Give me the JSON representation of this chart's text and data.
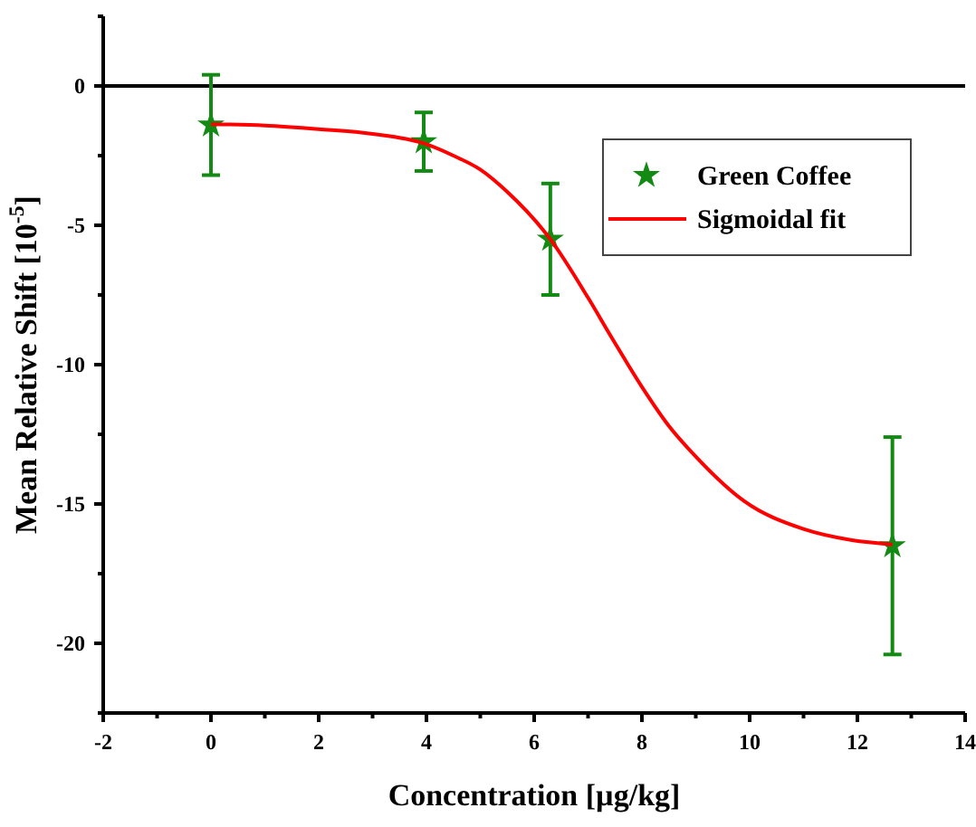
{
  "chart_data": {
    "type": "scatter",
    "xlabel": "Concentration [µg/kg]",
    "ylabel": "Mean Relative Shift [10$^{-5}$]",
    "xlim": [
      -2,
      14
    ],
    "xticks": [
      -2,
      {
        "value": -1,
        "label": null
      },
      0,
      {
        "value": 1,
        "label": null
      },
      2,
      {
        "value": 3,
        "label": null
      },
      4,
      {
        "value": 5,
        "label": null
      },
      6,
      {
        "value": 7,
        "label": null
      },
      8,
      {
        "value": 9,
        "label": null
      },
      10,
      {
        "value": 11,
        "label": null
      },
      12,
      {
        "value": 13,
        "label": null
      },
      14
    ],
    "ylim": [
      -22.5,
      2.5
    ],
    "yticks": [
      {
        "value": -22.5,
        "label": null
      },
      -20,
      {
        "value": -17.5,
        "label": null
      },
      -15,
      {
        "value": -12.5,
        "label": null
      },
      -10,
      {
        "value": -7.5,
        "label": null
      },
      -5,
      {
        "value": -2.5,
        "label": null
      },
      0,
      {
        "value": 2.5,
        "label": null
      }
    ],
    "grid": false,
    "legend": "top right",
    "ref_lines": [
      {
        "axis": "y",
        "value": 0,
        "color": "#000000"
      }
    ],
    "series": [
      {
        "name": "Green Coffee",
        "color": "#138a13",
        "marker": "star",
        "x": [
          0,
          3.95,
          6.3,
          12.65
        ],
        "values": [
          -1.4,
          -2.0,
          -5.5,
          -16.5
        ],
        "errors": [
          1.8,
          1.05,
          2.0,
          3.9
        ]
      },
      {
        "name": "Sigmoidal fit",
        "type": "line",
        "color": "#ff0000",
        "marker": "none",
        "line_style": "solid",
        "x": [
          0,
          1,
          2,
          3,
          3.95,
          4.5,
          5,
          5.5,
          6.3,
          7,
          7.43,
          8,
          8.5,
          9,
          9.9,
          11,
          11.9,
          12.65
        ],
        "values": [
          -1.37,
          -1.42,
          -1.55,
          -1.72,
          -2.06,
          -2.5,
          -3.0,
          -3.8,
          -5.5,
          -7.6,
          -9.0,
          -10.8,
          -12.2,
          -13.3,
          -14.9,
          -15.9,
          -16.3,
          -16.45
        ]
      }
    ]
  }
}
